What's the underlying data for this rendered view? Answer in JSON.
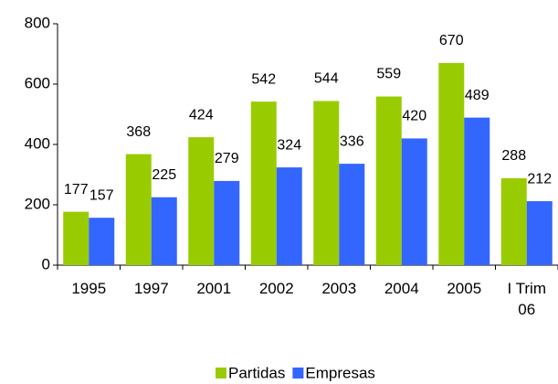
{
  "chart_data": {
    "type": "bar",
    "categories": [
      "1995",
      "1997",
      "2001",
      "2002",
      "2003",
      "2004",
      "2005",
      "I Trim 06"
    ],
    "series": [
      {
        "name": "Partidas",
        "color": "#99cc00",
        "values": [
          177,
          368,
          424,
          542,
          544,
          559,
          670,
          288
        ]
      },
      {
        "name": "Empresas",
        "color": "#3366ff",
        "values": [
          157,
          225,
          279,
          324,
          336,
          420,
          489,
          212
        ]
      }
    ],
    "ylim": [
      0,
      800
    ],
    "yticks": [
      0,
      200,
      400,
      600,
      800
    ],
    "grid": false,
    "legend": "bottom"
  }
}
